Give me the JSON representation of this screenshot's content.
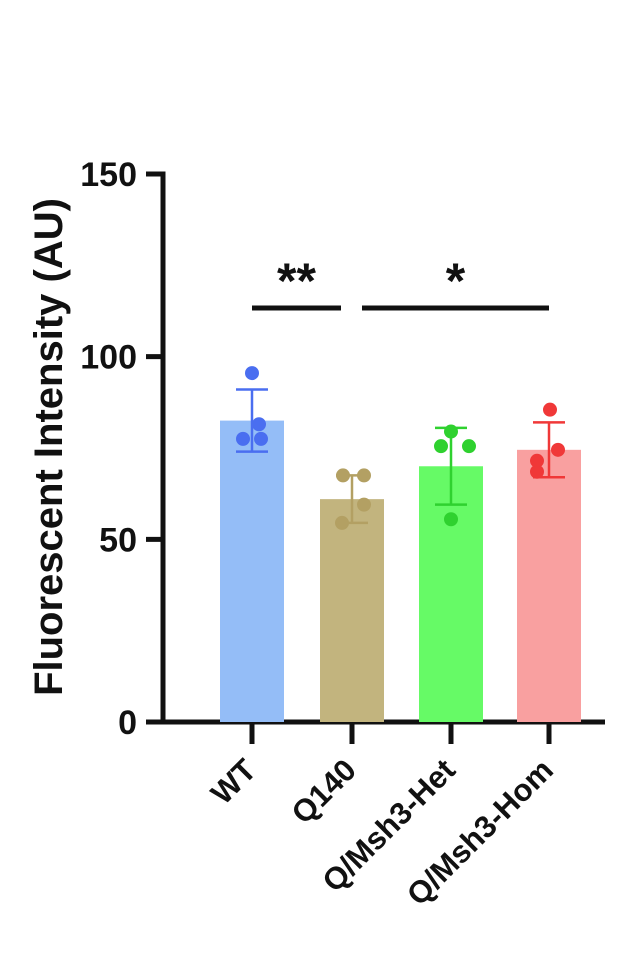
{
  "chart_data": {
    "type": "bar",
    "title": "",
    "ylabel": "Fluorescent Intensity (AU)",
    "xlabel": "",
    "ylim": [
      0,
      150
    ],
    "yticks": [
      0,
      50,
      100,
      150
    ],
    "yticks_labels": [
      "0",
      "50",
      "100",
      "150"
    ],
    "categories": [
      "WT",
      "Q140",
      "Q/Msh3-Het",
      "Q/Msh3-Hom"
    ],
    "values": [
      82.5,
      61,
      70,
      74.5
    ],
    "error": [
      8.5,
      6.5,
      10.5,
      7.5
    ],
    "points": [
      [
        95.5,
        81.5,
        77.5,
        77.5
      ],
      [
        67.5,
        67.5,
        59.5,
        54.5
      ],
      [
        79.5,
        75.5,
        75.5,
        55.5
      ],
      [
        85.5,
        74.5,
        71.5,
        68.5
      ]
    ],
    "colors": {
      "bars": [
        "#94bdf7",
        "#c2b47e",
        "#66fa66",
        "#f9a0a0"
      ],
      "points": [
        "#4a6ef0",
        "#b3a063",
        "#2fd12f",
        "#f03838"
      ]
    },
    "grid": false,
    "legend": "none",
    "annotations": [
      {
        "label": "**",
        "from": "WT",
        "to": "Q140"
      },
      {
        "label": "*",
        "from": "Q140",
        "to": "Q/Msh3-Hom"
      }
    ]
  }
}
